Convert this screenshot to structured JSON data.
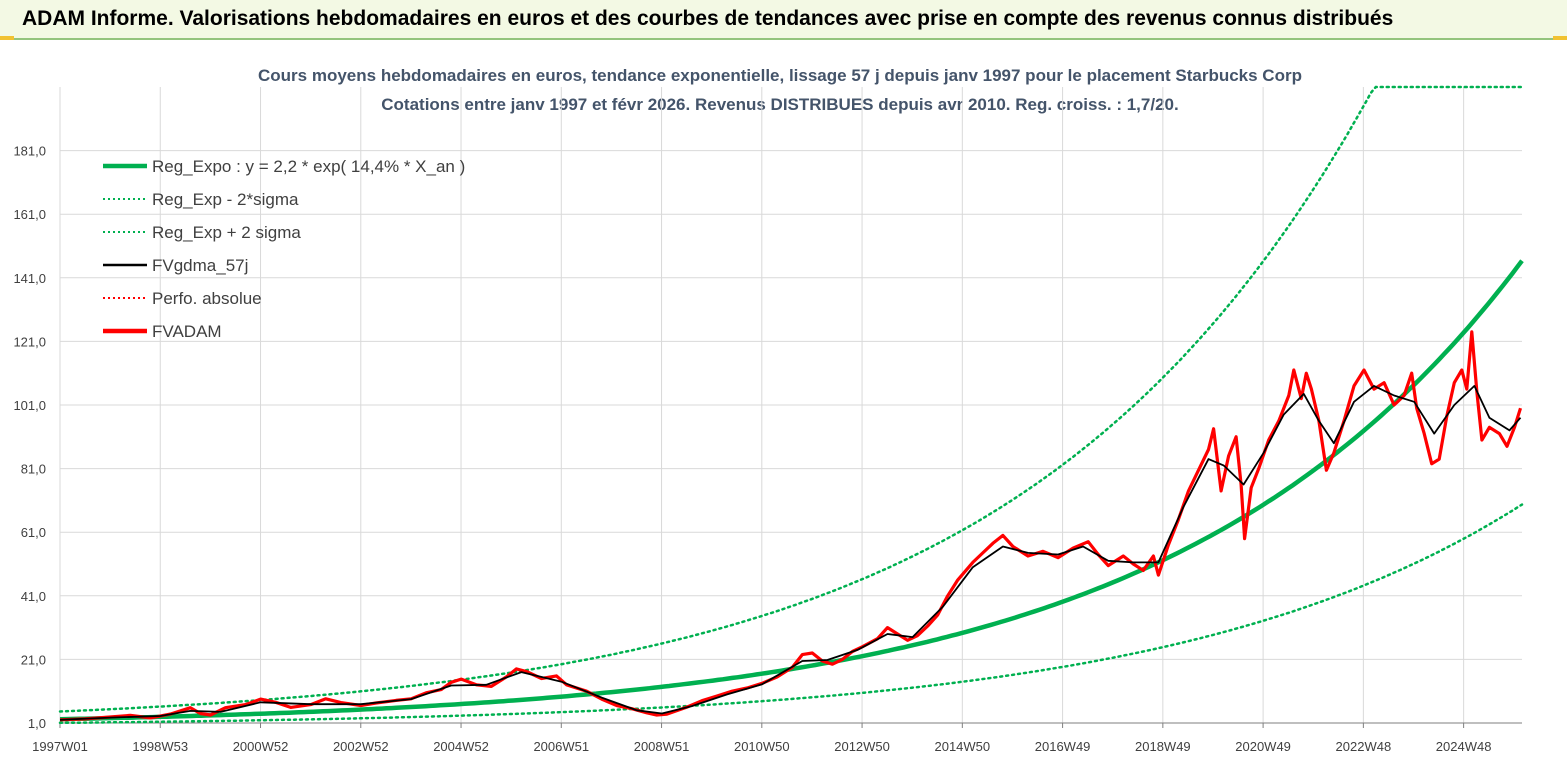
{
  "banner": {
    "title": "ADAM Informe. Valorisations hebdomadaires en euros et des courbes de tendances avec prise en compte des revenus connus distribués"
  },
  "colors": {
    "banner_bg": "#f3f9e4",
    "trend": "#00b050",
    "smooth": "#000000",
    "fvadam": "#ff0000",
    "grid": "#d9d9d9"
  },
  "chart_data": {
    "type": "line",
    "title": "Cours moyens hebdomadaires en euros, tendance exponentielle, lissage 57 j depuis janv 1997 pour le placement Starbucks Corp",
    "subtitle": "Cotations entre janv 1997 et févr 2026. Revenus DISTRIBUES depuis avr 2010. Reg. croiss. : 1,7/20.",
    "xlabel": "",
    "ylabel": "",
    "x_ticks": [
      "1997W01",
      "1998W53",
      "2000W52",
      "2002W52",
      "2004W52",
      "2006W51",
      "2008W51",
      "2010W50",
      "2012W50",
      "2014W50",
      "2016W49",
      "2018W49",
      "2020W49",
      "2022W48",
      "2024W48"
    ],
    "y_ticks": [
      "1,0",
      "21,0",
      "41,0",
      "61,0",
      "81,0",
      "101,0",
      "121,0",
      "141,0",
      "161,0",
      "181,0"
    ],
    "ylim": [
      1,
      201
    ],
    "xlim": [
      1997.0,
      2026.15
    ],
    "grid": true,
    "legend_position": "top-left",
    "legend": [
      {
        "label": "Reg_Expo : y = 2,2 * exp( 14,4% *  X_an )",
        "color": "#00b050",
        "style": "solid-thick"
      },
      {
        "label": "Reg_Exp - 2*sigma",
        "color": "#00b050",
        "style": "dotted"
      },
      {
        "label": "Reg_Exp + 2 sigma",
        "color": "#00b050",
        "style": "dotted"
      },
      {
        "label": "FVgdma_57j",
        "color": "#000000",
        "style": "solid"
      },
      {
        "label": "Perfo. absolue",
        "color": "#ff0000",
        "style": "dotted"
      },
      {
        "label": "FVADAM",
        "color": "#ff0000",
        "style": "solid-thick"
      }
    ],
    "regression": {
      "a": 2.2,
      "rate": 0.144,
      "x0": 1997.0,
      "sigma_factor": 2.1
    },
    "series": [
      {
        "name": "FVADAM",
        "color": "#ff0000",
        "points": [
          [
            1997.0,
            2.0
          ],
          [
            1997.5,
            2.3
          ],
          [
            1998.0,
            2.9
          ],
          [
            1998.4,
            3.4
          ],
          [
            1998.8,
            2.6
          ],
          [
            1999.2,
            3.8
          ],
          [
            1999.6,
            5.8
          ],
          [
            1999.8,
            4.0
          ],
          [
            2000.0,
            3.5
          ],
          [
            2000.3,
            5.8
          ],
          [
            2000.7,
            6.8
          ],
          [
            2001.0,
            8.5
          ],
          [
            2001.3,
            7.5
          ],
          [
            2001.6,
            5.9
          ],
          [
            2002.0,
            6.8
          ],
          [
            2002.3,
            8.6
          ],
          [
            2002.6,
            7.4
          ],
          [
            2003.0,
            6.5
          ],
          [
            2003.3,
            7.3
          ],
          [
            2003.7,
            8.1
          ],
          [
            2004.0,
            8.6
          ],
          [
            2004.3,
            10.5
          ],
          [
            2004.6,
            11.5
          ],
          [
            2004.8,
            13.8
          ],
          [
            2005.0,
            14.8
          ],
          [
            2005.3,
            13.0
          ],
          [
            2005.6,
            12.5
          ],
          [
            2005.9,
            15.5
          ],
          [
            2006.1,
            18.0
          ],
          [
            2006.3,
            17.2
          ],
          [
            2006.6,
            15.0
          ],
          [
            2006.9,
            15.8
          ],
          [
            2007.1,
            13.0
          ],
          [
            2007.5,
            11.0
          ],
          [
            2007.8,
            8.5
          ],
          [
            2008.1,
            6.5
          ],
          [
            2008.4,
            5.5
          ],
          [
            2008.7,
            4.2
          ],
          [
            2008.9,
            3.5
          ],
          [
            2009.1,
            3.8
          ],
          [
            2009.5,
            6.0
          ],
          [
            2009.8,
            8.0
          ],
          [
            2010.1,
            9.5
          ],
          [
            2010.4,
            11.0
          ],
          [
            2010.7,
            12.0
          ],
          [
            2011.0,
            13.5
          ],
          [
            2011.3,
            15.5
          ],
          [
            2011.6,
            18.5
          ],
          [
            2011.8,
            22.5
          ],
          [
            2012.0,
            23.0
          ],
          [
            2012.2,
            20.5
          ],
          [
            2012.4,
            19.5
          ],
          [
            2012.6,
            21.0
          ],
          [
            2012.8,
            23.5
          ],
          [
            2013.0,
            25.0
          ],
          [
            2013.3,
            27.5
          ],
          [
            2013.5,
            31.0
          ],
          [
            2013.7,
            29.0
          ],
          [
            2013.9,
            27.0
          ],
          [
            2014.1,
            28.5
          ],
          [
            2014.3,
            31.5
          ],
          [
            2014.5,
            35.0
          ],
          [
            2014.7,
            41.0
          ],
          [
            2014.9,
            46.0
          ],
          [
            2015.2,
            51.5
          ],
          [
            2015.4,
            54.5
          ],
          [
            2015.6,
            57.5
          ],
          [
            2015.8,
            60.0
          ],
          [
            2016.0,
            56.5
          ],
          [
            2016.3,
            53.5
          ],
          [
            2016.6,
            55.0
          ],
          [
            2016.9,
            53.0
          ],
          [
            2017.2,
            56.0
          ],
          [
            2017.5,
            58.0
          ],
          [
            2017.7,
            54.0
          ],
          [
            2017.9,
            50.5
          ],
          [
            2018.2,
            53.5
          ],
          [
            2018.4,
            51.0
          ],
          [
            2018.6,
            49.0
          ],
          [
            2018.8,
            53.5
          ],
          [
            2018.9,
            47.5
          ],
          [
            2019.1,
            57.0
          ],
          [
            2019.3,
            65.0
          ],
          [
            2019.5,
            74.0
          ],
          [
            2019.7,
            80.5
          ],
          [
            2019.9,
            87.0
          ],
          [
            2020.0,
            93.5
          ],
          [
            2020.15,
            74.0
          ],
          [
            2020.3,
            85.0
          ],
          [
            2020.45,
            91.0
          ],
          [
            2020.55,
            76.0
          ],
          [
            2020.62,
            59.0
          ],
          [
            2020.75,
            75.0
          ],
          [
            2020.9,
            81.0
          ],
          [
            2021.1,
            90.0
          ],
          [
            2021.3,
            96.0
          ],
          [
            2021.5,
            104.0
          ],
          [
            2021.6,
            112.0
          ],
          [
            2021.75,
            103.0
          ],
          [
            2021.85,
            111.0
          ],
          [
            2021.95,
            106.0
          ],
          [
            2022.1,
            96.0
          ],
          [
            2022.25,
            80.5
          ],
          [
            2022.4,
            86.0
          ],
          [
            2022.6,
            96.0
          ],
          [
            2022.8,
            107.0
          ],
          [
            2023.0,
            112.0
          ],
          [
            2023.2,
            106.0
          ],
          [
            2023.4,
            108.0
          ],
          [
            2023.6,
            101.0
          ],
          [
            2023.8,
            104.0
          ],
          [
            2023.95,
            111.0
          ],
          [
            2024.05,
            100.0
          ],
          [
            2024.2,
            92.0
          ],
          [
            2024.35,
            82.5
          ],
          [
            2024.5,
            84.0
          ],
          [
            2024.65,
            97.5
          ],
          [
            2024.8,
            108.0
          ],
          [
            2024.95,
            112.0
          ],
          [
            2025.05,
            106.0
          ],
          [
            2025.15,
            124.0
          ],
          [
            2025.25,
            105.0
          ],
          [
            2025.35,
            90.0
          ],
          [
            2025.5,
            94.0
          ],
          [
            2025.7,
            92.0
          ],
          [
            2025.85,
            88.0
          ],
          [
            2026.0,
            94.0
          ],
          [
            2026.12,
            100.0
          ]
        ]
      },
      {
        "name": "FVgdma_57j",
        "color": "#000000",
        "points": [
          [
            1997.0,
            2.0
          ],
          [
            1998.0,
            2.7
          ],
          [
            1999.0,
            3.2
          ],
          [
            1999.6,
            4.8
          ],
          [
            2000.2,
            4.5
          ],
          [
            2001.0,
            7.5
          ],
          [
            2002.0,
            6.9
          ],
          [
            2003.0,
            6.9
          ],
          [
            2004.0,
            8.5
          ],
          [
            2004.8,
            12.8
          ],
          [
            2005.5,
            13.0
          ],
          [
            2006.2,
            17.0
          ],
          [
            2007.0,
            14.0
          ],
          [
            2007.8,
            9.0
          ],
          [
            2008.5,
            5.0
          ],
          [
            2009.0,
            4.0
          ],
          [
            2009.6,
            6.3
          ],
          [
            2010.3,
            10.0
          ],
          [
            2011.0,
            13.2
          ],
          [
            2011.8,
            20.5
          ],
          [
            2012.3,
            20.8
          ],
          [
            2012.9,
            24.0
          ],
          [
            2013.5,
            29.0
          ],
          [
            2014.0,
            28.0
          ],
          [
            2014.6,
            37.5
          ],
          [
            2015.2,
            50.0
          ],
          [
            2015.8,
            56.5
          ],
          [
            2016.3,
            54.5
          ],
          [
            2016.9,
            54.0
          ],
          [
            2017.4,
            56.5
          ],
          [
            2017.9,
            52.0
          ],
          [
            2018.4,
            51.5
          ],
          [
            2018.9,
            51.5
          ],
          [
            2019.4,
            69.0
          ],
          [
            2019.9,
            84.0
          ],
          [
            2020.2,
            82.0
          ],
          [
            2020.6,
            76.0
          ],
          [
            2021.0,
            86.0
          ],
          [
            2021.4,
            98.0
          ],
          [
            2021.8,
            104.5
          ],
          [
            2022.1,
            96.0
          ],
          [
            2022.4,
            89.0
          ],
          [
            2022.8,
            102.0
          ],
          [
            2023.2,
            107.0
          ],
          [
            2023.6,
            104.0
          ],
          [
            2024.0,
            102.0
          ],
          [
            2024.4,
            92.0
          ],
          [
            2024.8,
            101.0
          ],
          [
            2025.2,
            107.0
          ],
          [
            2025.5,
            97.0
          ],
          [
            2025.9,
            93.0
          ],
          [
            2026.12,
            97.0
          ]
        ]
      }
    ]
  }
}
